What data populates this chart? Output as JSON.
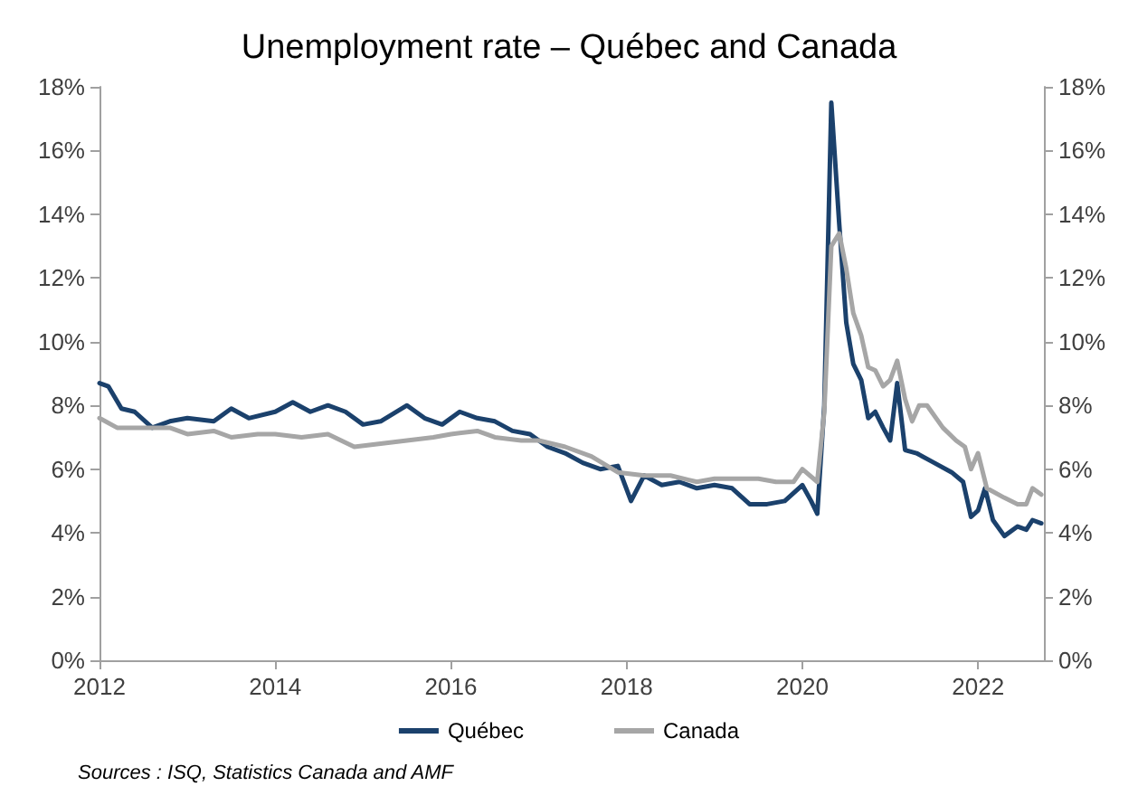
{
  "chart_data": {
    "type": "line",
    "title": "Unemployment rate – Québec and Canada",
    "annotations": [
      "Sources : ISQ, Statistics Canada and AMF"
    ],
    "xlim": [
      2012,
      2022.75
    ],
    "xticks": [
      2012,
      2014,
      2016,
      2018,
      2020,
      2022
    ],
    "ylim": [
      0,
      18
    ],
    "yticks": [
      {
        "value": 0,
        "label": "0%"
      },
      {
        "value": 2,
        "label": "2%"
      },
      {
        "value": 4,
        "label": "4%"
      },
      {
        "value": 6,
        "label": "6%"
      },
      {
        "value": 8,
        "label": "8%"
      },
      {
        "value": 10,
        "label": "10%"
      },
      {
        "value": 12,
        "label": "12%"
      },
      {
        "value": 14,
        "label": "14%"
      },
      {
        "value": 16,
        "label": "16%"
      },
      {
        "value": 18,
        "label": "18%"
      }
    ],
    "y2lim": [
      0,
      18
    ],
    "y2ticks": [
      {
        "value": 0,
        "label": "0%"
      },
      {
        "value": 2,
        "label": "2%"
      },
      {
        "value": 4,
        "label": "4%"
      },
      {
        "value": 6,
        "label": "6%"
      },
      {
        "value": 8,
        "label": "8%"
      },
      {
        "value": 10,
        "label": "10%"
      },
      {
        "value": 12,
        "label": "12%"
      },
      {
        "value": 14,
        "label": "14%"
      },
      {
        "value": 16,
        "label": "16%"
      },
      {
        "value": 18,
        "label": "18%"
      }
    ],
    "grid": false,
    "legend": "bottom",
    "marker": "none",
    "line_style": "solid",
    "series": [
      {
        "name": "Québec",
        "color": "#1b416c",
        "x": [
          2012.0,
          2012.1,
          2012.25,
          2012.4,
          2012.6,
          2012.8,
          2013.0,
          2013.3,
          2013.5,
          2013.7,
          2014.0,
          2014.2,
          2014.4,
          2014.6,
          2014.8,
          2015.0,
          2015.2,
          2015.5,
          2015.7,
          2015.9,
          2016.1,
          2016.3,
          2016.5,
          2016.7,
          2016.9,
          2017.1,
          2017.3,
          2017.5,
          2017.7,
          2017.9,
          2018.05,
          2018.2,
          2018.4,
          2018.6,
          2018.8,
          2019.0,
          2019.2,
          2019.4,
          2019.6,
          2019.8,
          2020.0,
          2020.1,
          2020.17,
          2020.25,
          2020.33,
          2020.42,
          2020.5,
          2020.58,
          2020.67,
          2020.75,
          2020.83,
          2020.92,
          2021.0,
          2021.08,
          2021.17,
          2021.3,
          2021.5,
          2021.7,
          2021.83,
          2021.92,
          2022.0,
          2022.08,
          2022.17,
          2022.3,
          2022.45,
          2022.55,
          2022.62,
          2022.72
        ],
        "values": [
          8.7,
          8.6,
          7.9,
          7.8,
          7.3,
          7.5,
          7.6,
          7.5,
          7.9,
          7.6,
          7.8,
          8.1,
          7.8,
          8.0,
          7.8,
          7.4,
          7.5,
          8.0,
          7.6,
          7.4,
          7.8,
          7.6,
          7.5,
          7.2,
          7.1,
          6.7,
          6.5,
          6.2,
          6.0,
          6.1,
          5.0,
          5.8,
          5.5,
          5.6,
          5.4,
          5.5,
          5.4,
          4.9,
          4.9,
          5.0,
          5.5,
          5.0,
          4.6,
          8.0,
          17.5,
          13.7,
          10.6,
          9.3,
          8.8,
          7.6,
          7.8,
          7.3,
          6.9,
          8.7,
          6.6,
          6.5,
          6.2,
          5.9,
          5.6,
          4.5,
          4.7,
          5.4,
          4.4,
          3.9,
          4.2,
          4.1,
          4.4,
          4.3
        ]
      },
      {
        "name": "Canada",
        "color": "#a6a6a6",
        "x": [
          2012.0,
          2012.2,
          2012.5,
          2012.8,
          2013.0,
          2013.3,
          2013.5,
          2013.8,
          2014.0,
          2014.3,
          2014.6,
          2014.9,
          2015.2,
          2015.5,
          2015.8,
          2016.0,
          2016.3,
          2016.5,
          2016.8,
          2017.0,
          2017.3,
          2017.6,
          2017.9,
          2018.2,
          2018.5,
          2018.8,
          2019.0,
          2019.3,
          2019.5,
          2019.7,
          2019.9,
          2020.0,
          2020.17,
          2020.25,
          2020.33,
          2020.42,
          2020.5,
          2020.58,
          2020.67,
          2020.75,
          2020.83,
          2020.92,
          2021.0,
          2021.08,
          2021.17,
          2021.25,
          2021.33,
          2021.42,
          2021.6,
          2021.75,
          2021.85,
          2021.92,
          2022.0,
          2022.1,
          2022.3,
          2022.45,
          2022.55,
          2022.62,
          2022.72
        ],
        "values": [
          7.6,
          7.3,
          7.3,
          7.3,
          7.1,
          7.2,
          7.0,
          7.1,
          7.1,
          7.0,
          7.1,
          6.7,
          6.8,
          6.9,
          7.0,
          7.1,
          7.2,
          7.0,
          6.9,
          6.9,
          6.7,
          6.4,
          5.9,
          5.8,
          5.8,
          5.6,
          5.7,
          5.7,
          5.7,
          5.6,
          5.6,
          6.0,
          5.6,
          7.8,
          13.0,
          13.4,
          12.3,
          10.9,
          10.2,
          9.2,
          9.1,
          8.6,
          8.8,
          9.4,
          8.2,
          7.5,
          8.0,
          8.0,
          7.3,
          6.9,
          6.7,
          6.0,
          6.5,
          5.4,
          5.1,
          4.9,
          4.9,
          5.4,
          5.2
        ]
      }
    ]
  }
}
